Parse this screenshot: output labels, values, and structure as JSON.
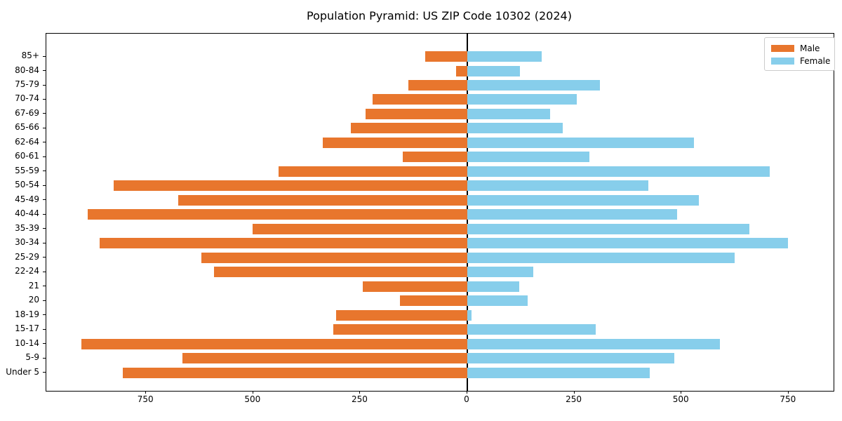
{
  "title": "Population Pyramid: US ZIP Code 10302 (2024)",
  "legend": {
    "male_label": "Male",
    "female_label": "Female",
    "position": "upper right"
  },
  "colors": {
    "male": "#e8762d",
    "female": "#87ceeb",
    "axis": "#000000",
    "legend_border": "#cccccc",
    "background": "#ffffff"
  },
  "chart_data": {
    "type": "bar",
    "subtype": "population-pyramid-horizontal",
    "title": "Population Pyramid: US ZIP Code 10302 (2024)",
    "categories": [
      "85+",
      "80-84",
      "75-79",
      "70-74",
      "67-69",
      "65-66",
      "62-64",
      "60-61",
      "55-59",
      "50-54",
      "45-49",
      "40-44",
      "35-39",
      "30-34",
      "25-29",
      "22-24",
      "21",
      "20",
      "18-19",
      "15-17",
      "10-14",
      "5-9",
      "Under 5"
    ],
    "category_order": "top-to-bottom",
    "series": [
      {
        "name": "Male",
        "side": "left",
        "color": "#e8762d",
        "values": [
          98,
          27,
          138,
          221,
          238,
          272,
          337,
          151,
          441,
          826,
          675,
          886,
          502,
          859,
          621,
          591,
          245,
          157,
          307,
          313,
          901,
          665,
          805
        ]
      },
      {
        "name": "Female",
        "side": "right",
        "color": "#87ceeb",
        "values": [
          174,
          123,
          310,
          256,
          194,
          223,
          529,
          285,
          706,
          423,
          541,
          490,
          659,
          748,
          624,
          154,
          121,
          140,
          10,
          300,
          590,
          483,
          426
        ]
      }
    ],
    "x_ticks": [
      -750,
      -500,
      -250,
      0,
      250,
      500,
      750
    ],
    "x_tick_labels": [
      "750",
      "500",
      "250",
      "0",
      "250",
      "500",
      "750"
    ],
    "xlim": [
      -983,
      855
    ],
    "grid": false,
    "legend_entries": [
      "Male",
      "Female"
    ],
    "center_line_at": 0
  }
}
